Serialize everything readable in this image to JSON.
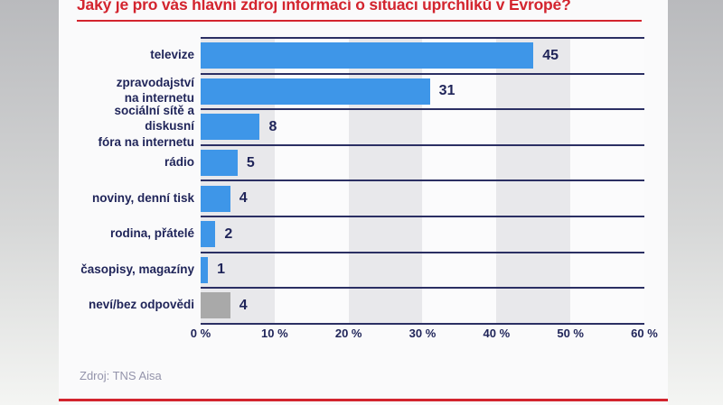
{
  "title": "Jaký je pro vás hlavní zdroj informací o situaci uprchlíků v Evropě?",
  "source": "Zdroj: TNS Aisa",
  "colors": {
    "bar_blue": "#3e96e8",
    "bar_gray": "#a9a9a9",
    "navy_text": "#1f2459",
    "navy_line": "#2b2f63",
    "accent_red": "#d3242e",
    "stripe_gray": "#e8e8eb"
  },
  "chart_data": {
    "type": "bar",
    "orientation": "horizontal",
    "title": "Jaký je pro vás hlavní zdroj informací o situaci uprchlíků v Evropě?",
    "categories": [
      "televize",
      "zpravodajství\nna internetu",
      "sociální sítě a diskusní\nfóra na internetu",
      "rádio",
      "noviny, denní tisk",
      "rodina, přátelé",
      "časopisy, magazíny",
      "neví/bez odpovědi"
    ],
    "values": [
      45,
      31,
      8,
      5,
      4,
      2,
      1,
      4
    ],
    "bar_colors": [
      "#3e96e8",
      "#3e96e8",
      "#3e96e8",
      "#3e96e8",
      "#3e96e8",
      "#3e96e8",
      "#3e96e8",
      "#a9a9a9"
    ],
    "unit": "%",
    "xlabel": "",
    "ylabel": "",
    "xlim": [
      0,
      60
    ],
    "ticks": [
      "0 %",
      "10 %",
      "20 %",
      "30 %",
      "40 %",
      "50 %",
      "60 %"
    ],
    "grid": "vertical-bands",
    "legend": "none",
    "value_labels": "outside-end"
  }
}
